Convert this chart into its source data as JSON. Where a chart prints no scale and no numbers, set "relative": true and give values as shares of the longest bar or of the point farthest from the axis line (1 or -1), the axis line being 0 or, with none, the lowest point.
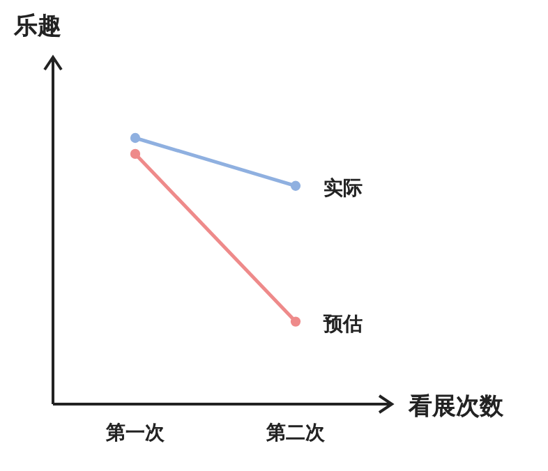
{
  "chart_data": {
    "type": "line",
    "relative": true,
    "xlabel": "看展次数",
    "ylabel": "乐趣",
    "categories": [
      "第一次",
      "第二次"
    ],
    "marker": "circle",
    "line_style": "solid",
    "series": [
      {
        "name": "实际",
        "color": "#8fb0e0",
        "values": [
          1,
          0.82
        ]
      },
      {
        "name": "预估",
        "color": "#ee8a8a",
        "values": [
          0.94,
          0.31
        ]
      }
    ]
  }
}
